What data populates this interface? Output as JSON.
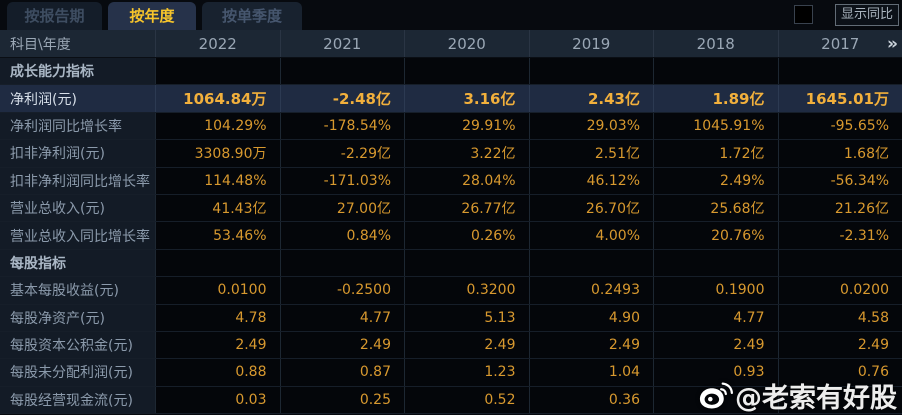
{
  "tabs": [
    {
      "label": "按报告期",
      "active": false
    },
    {
      "label": "按年度",
      "active": true
    },
    {
      "label": "按单季度",
      "active": false
    }
  ],
  "controls": {
    "show_yoy_label": "显示同比",
    "checkbox_checked": false
  },
  "table": {
    "corner_header": "科目\\年度",
    "year_columns": [
      "2022",
      "2021",
      "2020",
      "2019",
      "2018",
      "2017"
    ],
    "more_icon": "»",
    "rows": [
      {
        "label": "成长能力指标",
        "type": "section",
        "values": [
          "",
          "",
          "",
          "",
          "",
          ""
        ]
      },
      {
        "label": "净利润(元)",
        "type": "highlight",
        "values": [
          "1064.84万",
          "-2.48亿",
          "3.16亿",
          "2.43亿",
          "1.89亿",
          "1645.01万"
        ]
      },
      {
        "label": "净利润同比增长率",
        "type": "data",
        "values": [
          "104.29%",
          "-178.54%",
          "29.91%",
          "29.03%",
          "1045.91%",
          "-95.65%"
        ]
      },
      {
        "label": "扣非净利润(元)",
        "type": "data",
        "values": [
          "3308.90万",
          "-2.29亿",
          "3.22亿",
          "2.51亿",
          "1.72亿",
          "1.68亿"
        ]
      },
      {
        "label": "扣非净利润同比增长率",
        "type": "data",
        "values": [
          "114.48%",
          "-171.03%",
          "28.04%",
          "46.12%",
          "2.49%",
          "-56.34%"
        ]
      },
      {
        "label": "营业总收入(元)",
        "type": "data",
        "values": [
          "41.43亿",
          "27.00亿",
          "26.77亿",
          "26.70亿",
          "25.68亿",
          "21.26亿"
        ]
      },
      {
        "label": "营业总收入同比增长率",
        "type": "data",
        "values": [
          "53.46%",
          "0.84%",
          "0.26%",
          "4.00%",
          "20.76%",
          "-2.31%"
        ]
      },
      {
        "label": "每股指标",
        "type": "section",
        "values": [
          "",
          "",
          "",
          "",
          "",
          ""
        ]
      },
      {
        "label": "基本每股收益(元)",
        "type": "data",
        "values": [
          "0.0100",
          "-0.2500",
          "0.3200",
          "0.2493",
          "0.1900",
          "0.0200"
        ]
      },
      {
        "label": "每股净资产(元)",
        "type": "data",
        "values": [
          "4.78",
          "4.77",
          "5.13",
          "4.90",
          "4.77",
          "4.58"
        ]
      },
      {
        "label": "每股资本公积金(元)",
        "type": "data",
        "values": [
          "2.49",
          "2.49",
          "2.49",
          "2.49",
          "2.49",
          "2.49"
        ]
      },
      {
        "label": "每股未分配利润(元)",
        "type": "data",
        "values": [
          "0.88",
          "0.87",
          "1.23",
          "1.04",
          "0.93",
          "0.76"
        ]
      },
      {
        "label": "每股经营现金流(元)",
        "type": "data",
        "values": [
          "0.03",
          "0.25",
          "0.52",
          "0.36",
          "",
          ""
        ]
      }
    ]
  },
  "watermark": {
    "icon": "weibo-icon",
    "handle": "@老索有好股"
  },
  "colors": {
    "background": "#070a0f",
    "header_bg": "#1c2734",
    "label_col_bg": "#131b26",
    "value_bg": "#04060a",
    "highlight_row_bg": "#1f2b42",
    "value_gold": "#d8992f",
    "highlight_gold": "#f2b03c",
    "tab_active_text": "#f7c52b",
    "label_text": "#8b9aab"
  }
}
